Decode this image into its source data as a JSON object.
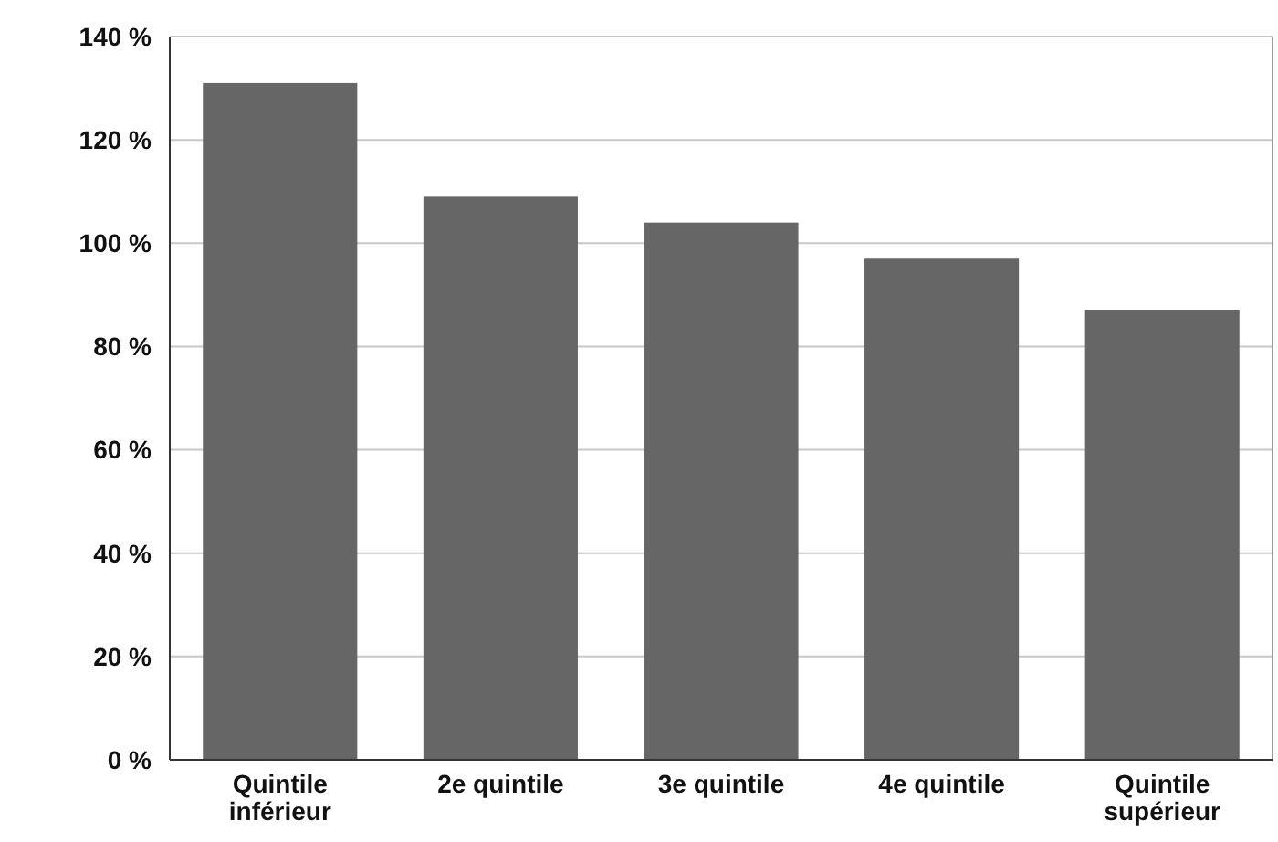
{
  "chart_data": {
    "type": "bar",
    "categories": [
      "Quintile inférieur",
      "2e quintile",
      "3e quintile",
      "4e quintile",
      "Quintile supérieur"
    ],
    "values": [
      131,
      109,
      104,
      97,
      87
    ],
    "color": "#666666",
    "ylim": [
      0,
      140
    ],
    "yticks": [
      {
        "value": 0,
        "label": "0 %"
      },
      {
        "value": 20,
        "label": "20 %"
      },
      {
        "value": 40,
        "label": "40 %"
      },
      {
        "value": 60,
        "label": "60 %"
      },
      {
        "value": 80,
        "label": "80 %"
      },
      {
        "value": 100,
        "label": "100 %"
      },
      {
        "value": 120,
        "label": "120 %"
      },
      {
        "value": 140,
        "label": "140 %"
      }
    ],
    "grid": "y"
  }
}
